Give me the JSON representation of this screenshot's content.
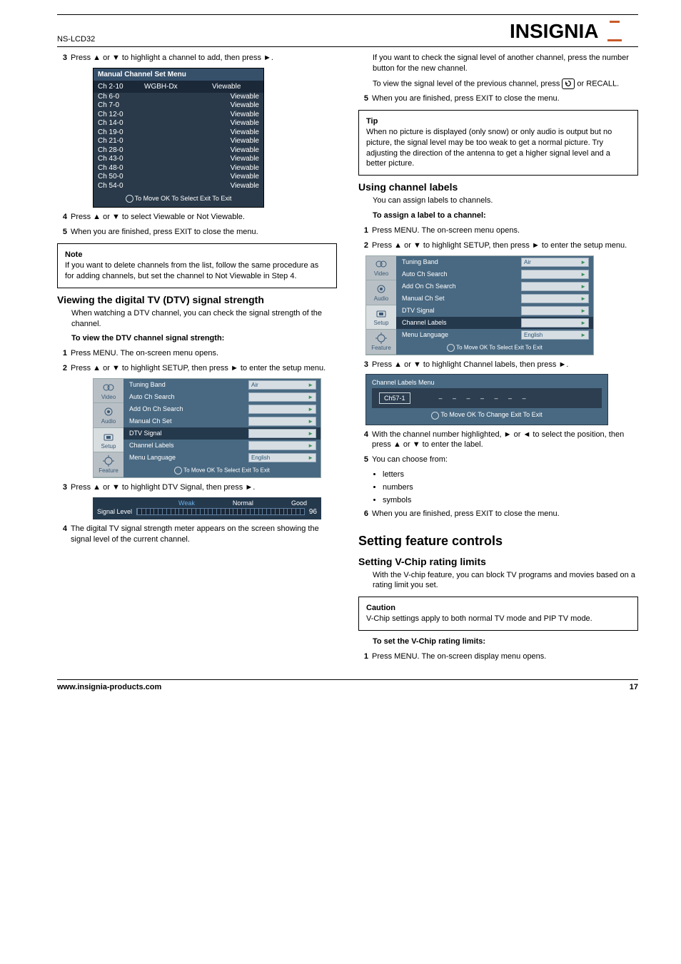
{
  "header": {
    "model": "NS-LCD32"
  },
  "brand": "INSIGNIA",
  "left": {
    "step3": "Press ▲   or ▼   to highlight a channel to add, then press ►.",
    "manual_menu": {
      "title": "Manual Channel Set Menu",
      "head_ch": "Ch 2-10",
      "head_lbl": "WGBH-Dx",
      "head_view": "Viewable",
      "rows": [
        {
          "ch": "Ch 6-0",
          "v": "Viewable"
        },
        {
          "ch": "Ch 7-0",
          "v": "Viewable"
        },
        {
          "ch": "Ch 12-0",
          "v": "Viewable"
        },
        {
          "ch": "Ch 14-0",
          "v": "Viewable"
        },
        {
          "ch": "Ch 19-0",
          "v": "Viewable"
        },
        {
          "ch": "Ch 21-0",
          "v": "Viewable"
        },
        {
          "ch": "Ch 28-0",
          "v": "Viewable"
        },
        {
          "ch": "Ch 43-0",
          "v": "Viewable"
        },
        {
          "ch": "Ch 48-0",
          "v": "Viewable"
        },
        {
          "ch": "Ch 50-0",
          "v": "Viewable"
        },
        {
          "ch": "Ch 54-0",
          "v": "Viewable"
        }
      ],
      "foot": "To Move  OK To Select  Exit To Exit"
    },
    "step4": "Press ▲   or ▼   to select Viewable or Not Viewable.",
    "step5": "When you are finished, press EXIT to close the menu.",
    "note1": "If you want to delete channels from the list, follow the same procedure as for adding channels, but set the channel to Not Viewable in Step 4.",
    "dtv": {
      "title": "Viewing the digital TV (DTV) signal strength",
      "intro": "When watching a DTV channel, you can check the signal strength of the channel.",
      "to": "To view the DTV channel signal strength:",
      "s1": "Press MENU. The on-screen menu opens.",
      "s2": "Press ▲   or ▼   to highlight SETUP, then press ►   to enter the setup menu.",
      "s3": "Press ▲   or ▼   to highlight DTV Signal, then press ►.",
      "signal": {
        "labels": [
          "Weak",
          "Normal",
          "Good"
        ],
        "label_colors": [
          "#6bb0e8",
          "#ffffff",
          "#e85050"
        ],
        "level_txt": "Signal Level",
        "value": "96"
      },
      "s4a": "The digital TV signal strength meter appears on the screen showing the signal level of the current channel.",
      "s4b": "If you want to check the signal level of another channel, press the number button for the new channel.",
      "s4c": "To view the signal level of the previous channel, press ",
      "s4c2": " or RECALL.",
      "s5": "When you are finished, press EXIT to close the menu."
    },
    "setup_menu": {
      "tabs": [
        "Video",
        "Audio",
        "Setup",
        "Feature"
      ],
      "rows": [
        {
          "label": "Tuning Band",
          "val": "Air",
          "arrow": true
        },
        {
          "label": "Auto Ch Search",
          "val": "",
          "arrow": true
        },
        {
          "label": "Add On Ch Search",
          "val": "",
          "arrow": true
        },
        {
          "label": "Manual Ch Set",
          "val": "",
          "arrow": true
        },
        {
          "label": "DTV Signal",
          "val": "",
          "arrow": true,
          "selected": true
        },
        {
          "label": "Channel Labels",
          "val": "",
          "arrow": true
        },
        {
          "label": "Menu Language",
          "val": "English",
          "arrow": true
        }
      ],
      "foot": "To Move  OK To Select  Exit To Exit"
    }
  },
  "right": {
    "tip": "When no picture is displayed (only snow) or only audio is output but no picture, the signal level may be too weak to get a normal picture. Try adjusting the direction of the antenna to get a higher signal level and a better picture.",
    "labels": {
      "title": "Using channel labels",
      "intro": "You can assign labels to channels.",
      "to": "To assign a label to a channel:",
      "s1": "Press MENU. The on-screen menu opens.",
      "s2": "Press ▲   or ▼   to highlight SETUP, then press ►   to enter the setup menu.",
      "s3": "Press ▲   or ▼   to highlight Channel labels, then press ►.",
      "label_menu": {
        "title": "Channel Labels Menu",
        "ch": "Ch57-1",
        "foot": "To Move  OK To Change  Exit To Exit"
      },
      "s4": "With the channel number highlighted, ►   or ◄   to select the position, then press ▲   or ▼   to enter the label.",
      "s5": "You can choose from:",
      "s5_items": [
        "letters",
        "numbers",
        "symbols"
      ],
      "s6": "When you are finished, press EXIT to close the menu."
    },
    "setup_menu": {
      "tabs": [
        "Video",
        "Audio",
        "Setup",
        "Feature"
      ],
      "rows": [
        {
          "label": "Tuning Band",
          "val": "Air",
          "arrow": true
        },
        {
          "label": "Auto Ch Search",
          "val": "",
          "arrow": true
        },
        {
          "label": "Add On Ch Search",
          "val": "",
          "arrow": true
        },
        {
          "label": "Manual Ch Set",
          "val": "",
          "arrow": true
        },
        {
          "label": "DTV Signal",
          "val": "",
          "arrow": true
        },
        {
          "label": "Channel Labels",
          "val": "",
          "arrow": true,
          "selected": true
        },
        {
          "label": "Menu Language",
          "val": "English",
          "arrow": true
        }
      ],
      "foot": "To Move  OK To Select  Exit To Exit"
    },
    "feature": {
      "h2": "Setting feature controls",
      "h3": "Setting V-Chip rating limits",
      "p": "With the V-chip feature, you can block TV programs and movies based on a rating limit you set.",
      "caution": "V-Chip settings apply to both normal TV mode and PIP TV mode.",
      "to": "To set the V-Chip rating limits:",
      "s1": "Press MENU. The on-screen display menu opens."
    }
  },
  "footer": {
    "site": "www.insignia-products.com",
    "page": "17"
  }
}
